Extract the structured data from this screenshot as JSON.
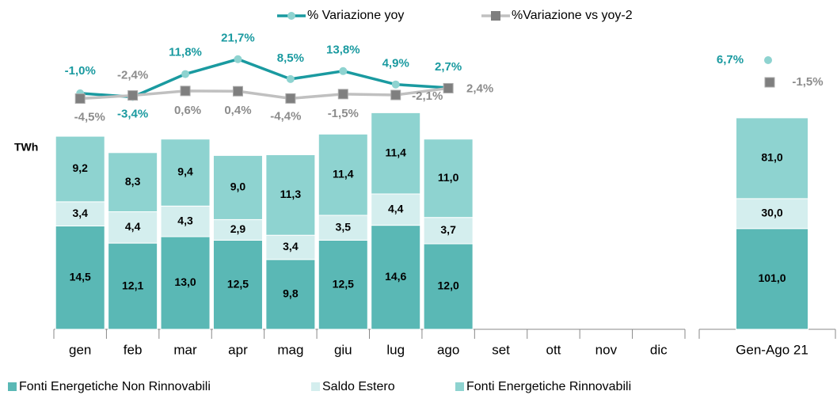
{
  "chart_data": [
    {
      "type": "bar",
      "stacked": true,
      "y_label": "TWh",
      "categories": [
        "gen",
        "feb",
        "mar",
        "apr",
        "mag",
        "giu",
        "lug",
        "ago",
        "set",
        "ott",
        "nov",
        "dic"
      ],
      "series": [
        {
          "name": "Fonti Energetiche Non Rinnovabili",
          "color": "#5ab8b5",
          "values": [
            14.5,
            12.1,
            13.0,
            12.5,
            9.8,
            12.5,
            14.6,
            12.0,
            null,
            null,
            null,
            null
          ],
          "value_labels": [
            "14,5",
            "12,1",
            "13,0",
            "12,5",
            "9,8",
            "12,5",
            "14,6",
            "12,0",
            null,
            null,
            null,
            null
          ]
        },
        {
          "name": "Saldo Estero",
          "color": "#d4eeee",
          "values": [
            3.4,
            4.4,
            4.3,
            2.9,
            3.4,
            3.5,
            4.4,
            3.7,
            null,
            null,
            null,
            null
          ],
          "value_labels": [
            "3,4",
            "4,4",
            "4,3",
            "2,9",
            "3,4",
            "3,5",
            "4,4",
            "3,7",
            null,
            null,
            null,
            null
          ]
        },
        {
          "name": "Fonti Energetiche Rinnovabili",
          "color": "#8ed3d0",
          "values": [
            9.2,
            8.3,
            9.4,
            9.0,
            11.3,
            11.4,
            11.4,
            11.0,
            null,
            null,
            null,
            null
          ],
          "value_labels": [
            "9,2",
            "8,3",
            "9,4",
            "9,0",
            "11,3",
            "11,4",
            "11,4",
            "11,0",
            null,
            null,
            null,
            null
          ]
        }
      ],
      "line_series": [
        {
          "name": "% Variazione yoy",
          "color": "#1a9aa0",
          "marker": "circle",
          "marker_color": "#8ed3d0",
          "values": [
            -1.0,
            -3.4,
            11.8,
            21.7,
            8.5,
            13.8,
            4.9,
            2.7
          ],
          "value_labels": [
            "-1,0%",
            "-3,4%",
            "11,8%",
            "21,7%",
            "8,5%",
            "13,8%",
            "4,9%",
            "2,7%"
          ]
        },
        {
          "name": "%Variazione vs yoy-2",
          "color": "#c0c0c0",
          "marker": "square",
          "marker_color": "#7f7f7f",
          "values": [
            -4.5,
            -2.4,
            0.6,
            0.4,
            -4.4,
            -1.5,
            -2.1,
            2.4
          ],
          "value_labels": [
            "-4,5%",
            "-2,4%",
            "0,6%",
            "0,4%",
            "-4,4%",
            "-1,5%",
            "-2,1%",
            "2,4%"
          ]
        }
      ],
      "bar_legend": "bottom",
      "line_legend": "top"
    },
    {
      "type": "bar",
      "stacked": true,
      "categories": [
        "Gen-Ago 21"
      ],
      "series": [
        {
          "color": "#5ab8b5",
          "values": [
            101.0
          ],
          "value_labels": [
            "101,0"
          ]
        },
        {
          "color": "#d4eeee",
          "values": [
            30.0
          ],
          "value_labels": [
            "30,0"
          ]
        },
        {
          "color": "#8ed3d0",
          "values": [
            81.0
          ],
          "value_labels": [
            "81,0"
          ]
        }
      ],
      "line_series": [
        {
          "color": "#1a9aa0",
          "marker": "circle",
          "marker_color": "#8ed3d0",
          "values": [
            6.7
          ],
          "value_labels": [
            "6,7%"
          ]
        },
        {
          "color": "#c0c0c0",
          "marker": "square",
          "marker_color": "#7f7f7f",
          "values": [
            -1.5
          ],
          "value_labels": [
            "-1,5%"
          ]
        }
      ]
    }
  ]
}
